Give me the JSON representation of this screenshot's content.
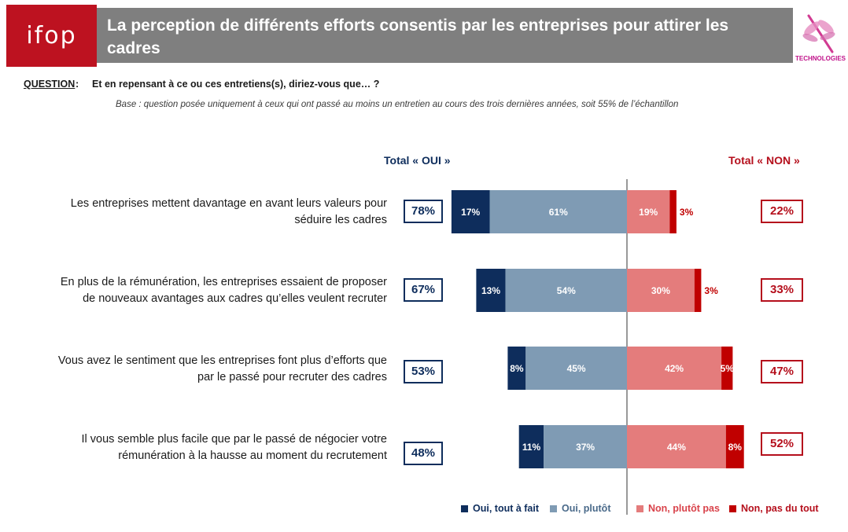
{
  "header": {
    "logo": "ifop",
    "title": "La perception de différents efforts consentis par les entreprises pour attirer les cadres",
    "partner_logo_text": "TECHNOLOGIES",
    "partner_logo_icon": "dragonfly-icon"
  },
  "question": {
    "label": "QUESTION",
    "colon": ":",
    "text": "Et en repensant à ce ou ces entretiens(s), diriez-vous que… ?",
    "base": "Base : question posée uniquement à ceux qui ont passé au moins un entretien au cours des trois dernières années, soit 55% de l’échantillon"
  },
  "totals_header": {
    "oui": "Total  « OUI »",
    "non": "Total « NON »"
  },
  "rows": [
    {
      "label_line1": "Les entreprises mettent davantage en avant leurs valeurs pour",
      "label_line2": "séduire les cadres",
      "total_oui": "78%",
      "total_non": "22%"
    },
    {
      "label_line1": "En plus de la rémunération, les entreprises essaient de proposer",
      "label_line2": "de nouveaux avantages aux cadres qu’elles veulent recruter",
      "total_oui": "67%",
      "total_non": "33%"
    },
    {
      "label_line1": "Vous avez le sentiment que les entreprises font plus d’efforts que",
      "label_line2": "par le passé pour recruter des cadres",
      "total_oui": "53%",
      "total_non": "47%"
    },
    {
      "label_line1": "Il vous semble plus facile que par le passé de négocier votre",
      "label_line2": "rémunération à la hausse au moment du recrutement",
      "total_oui": "48%",
      "total_non": "52%"
    }
  ],
  "legend": {
    "oui_tout_a_fait": "Oui, tout à fait",
    "oui_plutot": "Oui, plutôt",
    "non_plutot_pas": "Non, plutôt pas",
    "non_pas_du_tout": "Non, pas du tout"
  },
  "colors": {
    "header_gray": "#7f7f7f",
    "ifop_red": "#bd1220",
    "oui_tout_a_fait": "#0e2d5c",
    "oui_plutot": "#7f9bb4",
    "non_plutot_pas": "#e47c7c",
    "non_pas_du_tout": "#c00000"
  },
  "chart_data": {
    "type": "bar",
    "orientation": "horizontal-diverging",
    "categories": [
      "Les entreprises mettent davantage en avant leurs valeurs pour séduire les cadres",
      "En plus de la rémunération, les entreprises essaient de proposer de nouveaux avantages aux cadres qu’elles veulent recruter",
      "Vous avez le sentiment que les entreprises font plus d’efforts que par le passé pour recruter des cadres",
      "Il vous semble plus facile que par le passé de négocier votre rémunération à la hausse au moment du recrutement"
    ],
    "series": [
      {
        "name": "Oui, tout à fait",
        "side": "left",
        "values": [
          17,
          13,
          8,
          11
        ],
        "labels": [
          "17%",
          "13%",
          "8%",
          "11%"
        ]
      },
      {
        "name": "Oui, plutôt",
        "side": "left",
        "values": [
          61,
          54,
          45,
          37
        ],
        "labels": [
          "61%",
          "54%",
          "45%",
          "37%"
        ]
      },
      {
        "name": "Non, plutôt pas",
        "side": "right",
        "values": [
          19,
          30,
          42,
          44
        ],
        "labels": [
          "19%",
          "30%",
          "42%",
          "44%"
        ]
      },
      {
        "name": "Non, pas du tout",
        "side": "right",
        "values": [
          3,
          3,
          5,
          8
        ],
        "labels": [
          "3%",
          "3%",
          "5%",
          "8%"
        ]
      }
    ],
    "totals_oui": [
      78,
      67,
      53,
      48
    ],
    "totals_non": [
      22,
      33,
      47,
      52
    ],
    "legend_position": "bottom-right",
    "grid": false
  }
}
